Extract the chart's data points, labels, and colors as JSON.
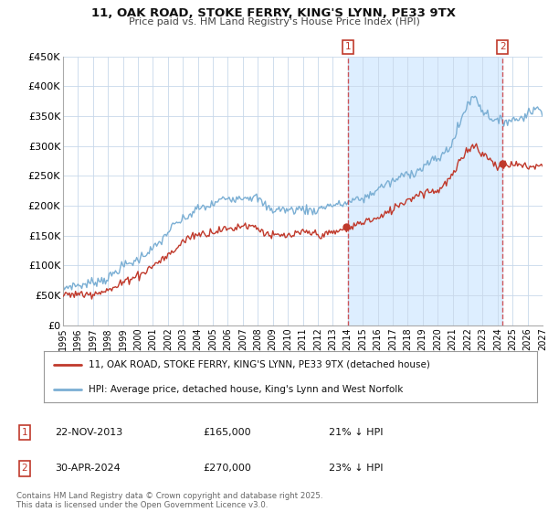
{
  "title1": "11, OAK ROAD, STOKE FERRY, KING'S LYNN, PE33 9TX",
  "title2": "Price paid vs. HM Land Registry's House Price Index (HPI)",
  "xmin": 1995.0,
  "xmax": 2027.0,
  "ymin": 0,
  "ymax": 450000,
  "yticks": [
    0,
    50000,
    100000,
    150000,
    200000,
    250000,
    300000,
    350000,
    400000,
    450000
  ],
  "ytick_labels": [
    "£0",
    "£50K",
    "£100K",
    "£150K",
    "£200K",
    "£250K",
    "£300K",
    "£350K",
    "£400K",
    "£450K"
  ],
  "xtick_years": [
    1995,
    1996,
    1997,
    1998,
    1999,
    2000,
    2001,
    2002,
    2003,
    2004,
    2005,
    2006,
    2007,
    2008,
    2009,
    2010,
    2011,
    2012,
    2013,
    2014,
    2015,
    2016,
    2017,
    2018,
    2019,
    2020,
    2021,
    2022,
    2023,
    2024,
    2025,
    2026,
    2027
  ],
  "red_line_color": "#c0392b",
  "blue_line_color": "#7bafd4",
  "vline1_x": 2014.0,
  "vline2_x": 2024.33,
  "shade_color": "#ddeeff",
  "transaction1_x": 2013.9,
  "transaction1_y": 165000,
  "transaction2_x": 2024.33,
  "transaction2_y": 270000,
  "transaction1_date": "22-NOV-2013",
  "transaction1_price": "£165,000",
  "transaction1_hpi": "21% ↓ HPI",
  "transaction2_date": "30-APR-2024",
  "transaction2_price": "£270,000",
  "transaction2_hpi": "23% ↓ HPI",
  "legend1": "11, OAK ROAD, STOKE FERRY, KING'S LYNN, PE33 9TX (detached house)",
  "legend2": "HPI: Average price, detached house, King's Lynn and West Norfolk",
  "footer": "Contains HM Land Registry data © Crown copyright and database right 2025.\nThis data is licensed under the Open Government Licence v3.0.",
  "background_color": "#ffffff",
  "grid_color": "#c8d8ea"
}
